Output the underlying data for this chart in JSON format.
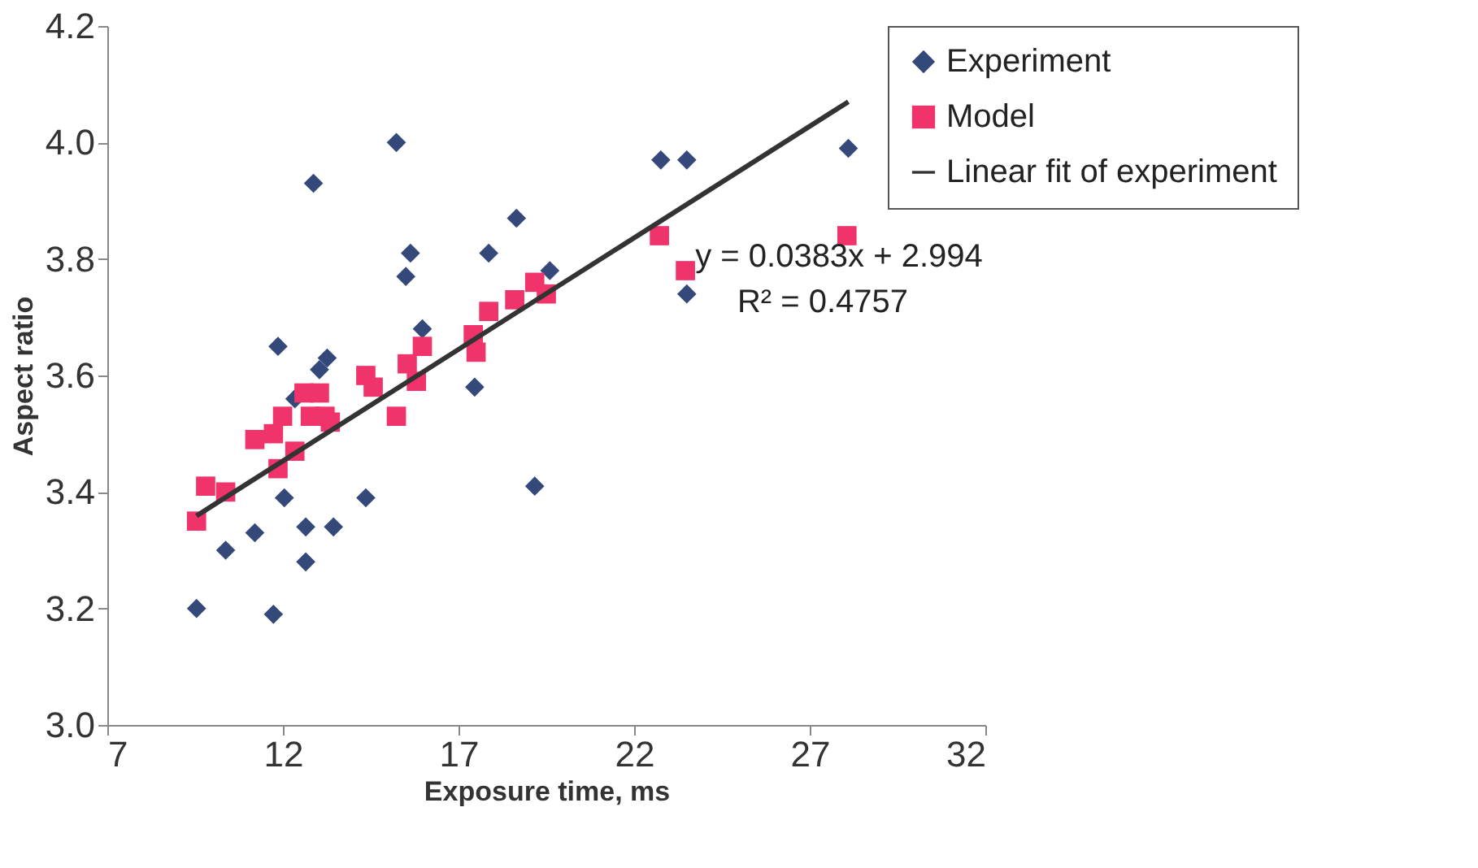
{
  "chart_data": {
    "type": "scatter",
    "xlabel": "Exposure time, ms",
    "ylabel": "Aspect ratio",
    "xlim": [
      7,
      32
    ],
    "xticks": [
      7,
      12,
      17,
      22,
      27,
      32
    ],
    "ylim": [
      3.0,
      4.2
    ],
    "yticks": [
      {
        "value": 3.0,
        "label": "3.0"
      },
      {
        "value": 3.2,
        "label": "3.2"
      },
      {
        "value": 3.4,
        "label": "3.4"
      },
      {
        "value": 3.6,
        "label": "3.6"
      },
      {
        "value": 3.8,
        "label": "3.8"
      },
      {
        "value": 4.0,
        "label": "4.0"
      },
      {
        "value": 4.2,
        "label": "4.2"
      }
    ],
    "grid": false,
    "legend": "top right",
    "series": [
      {
        "name": "Experiment",
        "marker": "diamond",
        "color": "#34497a",
        "x": [
          15.23,
          12.87,
          15.63,
          15.5,
          17.86,
          15.97,
          18.65,
          17.46,
          19.6,
          13.26,
          13.04,
          11.86,
          12.34,
          9.85,
          9.54,
          10.37,
          11.2,
          12.04,
          12.65,
          12.65,
          11.73,
          13.44,
          14.36,
          22.76,
          23.5,
          28.1,
          23.5,
          19.17
        ],
        "values": [
          4.0,
          3.93,
          3.81,
          3.77,
          3.81,
          3.68,
          3.87,
          3.58,
          3.78,
          3.63,
          3.61,
          3.65,
          3.56,
          null,
          3.2,
          3.3,
          3.33,
          3.39,
          3.34,
          3.28,
          3.19,
          3.34,
          3.39,
          3.97,
          3.97,
          3.99,
          3.74,
          3.41
        ]
      },
      {
        "name": "Model",
        "marker": "square",
        "color": "#f0336a",
        "x": [
          9.54,
          9.8,
          10.37,
          11.2,
          11.73,
          11.86,
          11.99,
          12.34,
          12.6,
          13.04,
          12.78,
          13.2,
          13.35,
          14.36,
          14.57,
          15.23,
          15.54,
          15.97,
          15.8,
          17.42,
          17.5,
          17.86,
          18.6,
          19.17,
          19.5,
          22.72,
          23.46,
          28.06
        ],
        "values": [
          3.35,
          3.41,
          3.4,
          3.49,
          3.5,
          3.44,
          3.53,
          3.47,
          3.57,
          3.57,
          3.53,
          3.53,
          3.52,
          3.6,
          3.58,
          3.53,
          3.62,
          3.65,
          3.59,
          3.67,
          3.64,
          3.71,
          3.73,
          3.76,
          3.74,
          3.84,
          3.78,
          3.84
        ]
      },
      {
        "name": "Linear fit of experiment",
        "type": "line",
        "marker": "none",
        "line_style": "solid",
        "color": "#333333",
        "x": [
          9.54,
          28.1
        ],
        "values": [
          3.359,
          4.07
        ]
      }
    ],
    "annotations": [
      "y = 0.0383x + 2.994",
      "R² = 0.4757"
    ]
  }
}
